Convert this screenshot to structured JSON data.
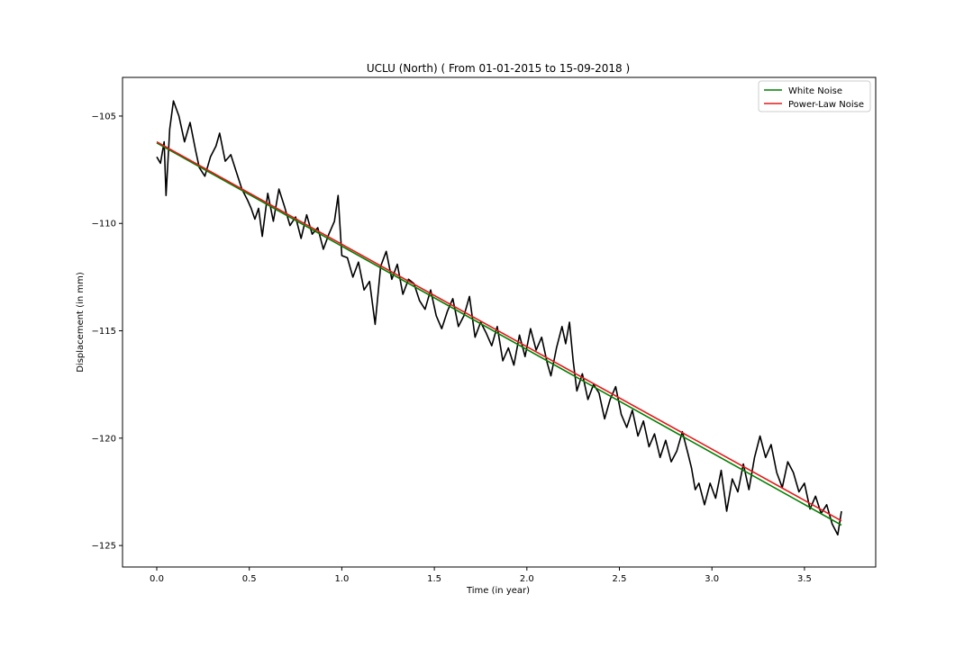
{
  "chart_data": {
    "type": "line",
    "title": "UCLU (North) ( From 01-01-2015 to 15-09-2018 )",
    "xlabel": "Time (in year)",
    "ylabel": "Displacement (in mm)",
    "xlim": [
      -0.185,
      3.885
    ],
    "ylim": [
      -126.0,
      -103.2
    ],
    "xticks": [
      0.0,
      0.5,
      1.0,
      1.5,
      2.0,
      2.5,
      3.0,
      3.5
    ],
    "xtick_labels": [
      "0.0",
      "0.5",
      "1.0",
      "1.5",
      "2.0",
      "2.5",
      "3.0",
      "3.5"
    ],
    "yticks": [
      -105,
      -110,
      -115,
      -120,
      -125
    ],
    "ytick_labels": [
      "−105",
      "−110",
      "−115",
      "−120",
      "−125"
    ],
    "grid": false,
    "legend": {
      "position": "top-right",
      "entries": [
        "White Noise",
        "Power-Law Noise"
      ]
    },
    "series": [
      {
        "name": "",
        "color": "#000000",
        "style": "observed displacement (black noisy line)",
        "points": [
          [
            0.0,
            -106.9
          ],
          [
            0.02,
            -107.2
          ],
          [
            0.04,
            -106.2
          ],
          [
            0.05,
            -108.7
          ],
          [
            0.07,
            -105.6
          ],
          [
            0.09,
            -104.3
          ],
          [
            0.12,
            -105.0
          ],
          [
            0.15,
            -106.2
          ],
          [
            0.18,
            -105.3
          ],
          [
            0.21,
            -106.6
          ],
          [
            0.23,
            -107.4
          ],
          [
            0.26,
            -107.8
          ],
          [
            0.29,
            -106.9
          ],
          [
            0.32,
            -106.4
          ],
          [
            0.34,
            -105.8
          ],
          [
            0.37,
            -107.1
          ],
          [
            0.4,
            -106.8
          ],
          [
            0.43,
            -107.6
          ],
          [
            0.46,
            -108.4
          ],
          [
            0.49,
            -108.9
          ],
          [
            0.51,
            -109.3
          ],
          [
            0.53,
            -109.8
          ],
          [
            0.55,
            -109.3
          ],
          [
            0.57,
            -110.6
          ],
          [
            0.6,
            -108.6
          ],
          [
            0.63,
            -109.9
          ],
          [
            0.66,
            -108.4
          ],
          [
            0.69,
            -109.2
          ],
          [
            0.72,
            -110.1
          ],
          [
            0.75,
            -109.7
          ],
          [
            0.78,
            -110.7
          ],
          [
            0.81,
            -109.6
          ],
          [
            0.84,
            -110.5
          ],
          [
            0.87,
            -110.2
          ],
          [
            0.9,
            -111.2
          ],
          [
            0.93,
            -110.5
          ],
          [
            0.96,
            -109.9
          ],
          [
            0.98,
            -108.7
          ],
          [
            1.0,
            -111.5
          ],
          [
            1.03,
            -111.6
          ],
          [
            1.06,
            -112.5
          ],
          [
            1.09,
            -111.8
          ],
          [
            1.12,
            -113.1
          ],
          [
            1.15,
            -112.7
          ],
          [
            1.18,
            -114.7
          ],
          [
            1.21,
            -112.0
          ],
          [
            1.24,
            -111.3
          ],
          [
            1.27,
            -112.6
          ],
          [
            1.3,
            -111.9
          ],
          [
            1.33,
            -113.3
          ],
          [
            1.36,
            -112.6
          ],
          [
            1.39,
            -112.8
          ],
          [
            1.42,
            -113.6
          ],
          [
            1.45,
            -114.0
          ],
          [
            1.48,
            -113.1
          ],
          [
            1.51,
            -114.3
          ],
          [
            1.54,
            -114.9
          ],
          [
            1.57,
            -114.1
          ],
          [
            1.6,
            -113.5
          ],
          [
            1.63,
            -114.8
          ],
          [
            1.66,
            -114.3
          ],
          [
            1.69,
            -113.4
          ],
          [
            1.72,
            -115.3
          ],
          [
            1.75,
            -114.6
          ],
          [
            1.78,
            -115.1
          ],
          [
            1.81,
            -115.7
          ],
          [
            1.84,
            -114.8
          ],
          [
            1.87,
            -116.4
          ],
          [
            1.9,
            -115.8
          ],
          [
            1.93,
            -116.6
          ],
          [
            1.96,
            -115.2
          ],
          [
            1.99,
            -116.2
          ],
          [
            2.02,
            -114.9
          ],
          [
            2.05,
            -115.9
          ],
          [
            2.08,
            -115.3
          ],
          [
            2.11,
            -116.5
          ],
          [
            2.13,
            -117.1
          ],
          [
            2.16,
            -115.8
          ],
          [
            2.19,
            -114.8
          ],
          [
            2.21,
            -115.6
          ],
          [
            2.23,
            -114.6
          ],
          [
            2.25,
            -116.4
          ],
          [
            2.27,
            -117.8
          ],
          [
            2.3,
            -117.0
          ],
          [
            2.33,
            -118.2
          ],
          [
            2.36,
            -117.5
          ],
          [
            2.39,
            -117.9
          ],
          [
            2.42,
            -119.1
          ],
          [
            2.45,
            -118.2
          ],
          [
            2.48,
            -117.6
          ],
          [
            2.51,
            -118.9
          ],
          [
            2.54,
            -119.5
          ],
          [
            2.57,
            -118.7
          ],
          [
            2.6,
            -119.9
          ],
          [
            2.63,
            -119.2
          ],
          [
            2.66,
            -120.4
          ],
          [
            2.69,
            -119.8
          ],
          [
            2.72,
            -120.9
          ],
          [
            2.75,
            -120.1
          ],
          [
            2.78,
            -121.1
          ],
          [
            2.81,
            -120.6
          ],
          [
            2.84,
            -119.7
          ],
          [
            2.87,
            -120.7
          ],
          [
            2.89,
            -121.4
          ],
          [
            2.91,
            -122.4
          ],
          [
            2.93,
            -122.1
          ],
          [
            2.96,
            -123.1
          ],
          [
            2.99,
            -122.1
          ],
          [
            3.02,
            -122.8
          ],
          [
            3.05,
            -121.5
          ],
          [
            3.08,
            -123.4
          ],
          [
            3.11,
            -121.9
          ],
          [
            3.14,
            -122.5
          ],
          [
            3.17,
            -121.2
          ],
          [
            3.2,
            -122.4
          ],
          [
            3.23,
            -120.9
          ],
          [
            3.26,
            -119.9
          ],
          [
            3.29,
            -120.9
          ],
          [
            3.32,
            -120.3
          ],
          [
            3.35,
            -121.6
          ],
          [
            3.38,
            -122.3
          ],
          [
            3.41,
            -121.1
          ],
          [
            3.44,
            -121.6
          ],
          [
            3.47,
            -122.5
          ],
          [
            3.5,
            -122.1
          ],
          [
            3.53,
            -123.3
          ],
          [
            3.56,
            -122.7
          ],
          [
            3.59,
            -123.5
          ],
          [
            3.62,
            -123.1
          ],
          [
            3.65,
            -124.0
          ],
          [
            3.68,
            -124.5
          ],
          [
            3.7,
            -123.4
          ]
        ]
      },
      {
        "name": "White Noise",
        "color": "#008000",
        "x": [
          0.0,
          3.7
        ],
        "y": [
          -106.25,
          -124.05
        ]
      },
      {
        "name": "Power-Law Noise",
        "color": "#e31a1c",
        "x": [
          0.0,
          3.7
        ],
        "y": [
          -106.2,
          -123.85
        ]
      }
    ]
  }
}
